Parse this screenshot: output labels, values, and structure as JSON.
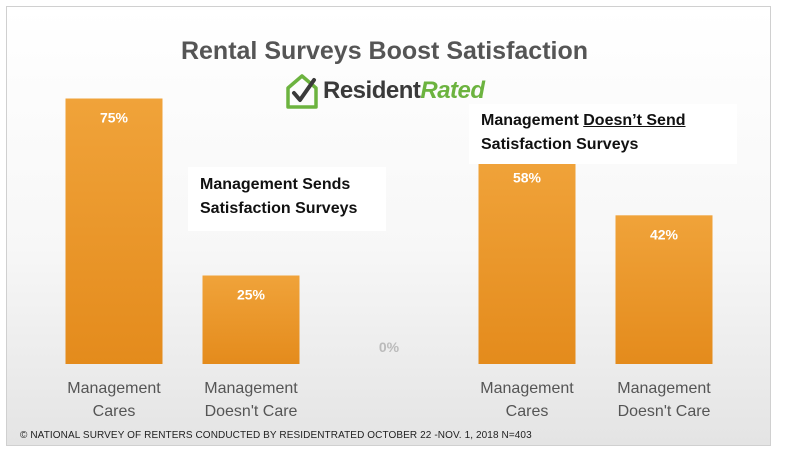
{
  "chart_data": {
    "type": "bar",
    "title": "Rental Surveys Boost Satisfaction",
    "categories": [
      "Management Cares",
      "Management Doesn't Care",
      "",
      "Management Cares",
      "Management Doesn't Care"
    ],
    "values": [
      75,
      25,
      0,
      58,
      42
    ],
    "value_labels": [
      "75%",
      "25%",
      "0%",
      "58%",
      "42%"
    ],
    "category_lines": [
      [
        "Management",
        "Cares"
      ],
      [
        "Management",
        "Doesn't Care"
      ],
      [
        "",
        ""
      ],
      [
        "Management",
        "Cares"
      ],
      [
        "Management",
        "Doesn't Care"
      ]
    ],
    "groups": [
      {
        "label_lines": [
          "Management Sends",
          "Satisfaction Surveys"
        ]
      },
      {
        "label_prefix": "Management ",
        "label_underlined": "Doesn’t Send",
        "label_line2": "Satisfaction Surveys"
      }
    ],
    "ylim": [
      0,
      100
    ],
    "grid": false,
    "legend": "none",
    "bar_color_top": "#f0a33a",
    "bar_color_bottom": "#e48b1c",
    "value_label_color": "#ffffff",
    "zero_label_color": "#bbbbbb"
  },
  "logo": {
    "text_dark": "Resident",
    "text_green": "Rated",
    "icon": "house-check-icon",
    "green": "#6cb33f",
    "dark": "#3a3a3a"
  },
  "footnote": "© NATIONAL SURVEY OF RENTERS CONDUCTED BY RESIDENTRATED OCTOBER 22 -NOV. 1, 2018   N=403"
}
